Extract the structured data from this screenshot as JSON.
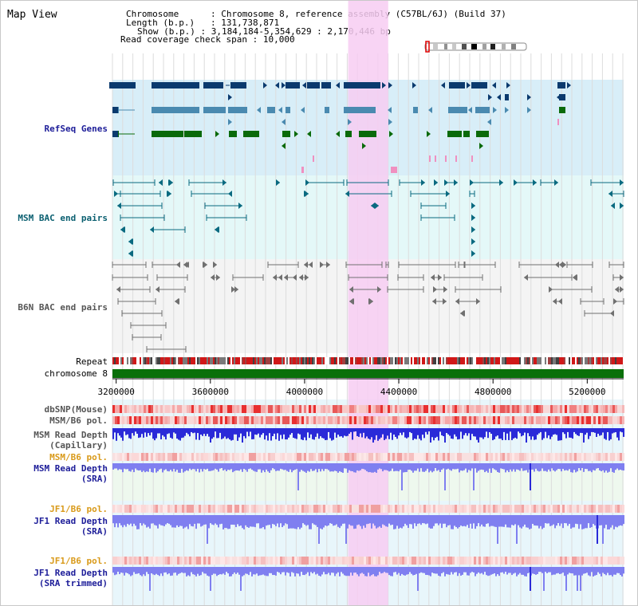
{
  "page_title": "Map View",
  "header": {
    "lines": [
      {
        "key": "Chromosome",
        "value": "Chromosome 8, reference assembly (C57BL/6J) (Build 37)"
      },
      {
        "key": "Length (b.p.)",
        "value": "131,738,871"
      },
      {
        "key": "Show (b.p.)",
        "value": "3,184,184-5,354,629 : 2,170,446 bp"
      },
      {
        "key": "Read coverage check span",
        "value": "10,000"
      }
    ]
  },
  "tracks": {
    "refseq": "RefSeq Genes",
    "msm_bac": "MSM BAC end pairs",
    "b6n_bac": "B6N BAC end pairs",
    "repeat": "Repeat",
    "chromosome": "chromosome 8",
    "dbsnp": "dbSNP(Mouse)",
    "msm_b6_pol_1": "MSM/B6 pol.",
    "msm_depth_cap_1": "MSM Read Depth",
    "msm_depth_cap_2": "(Capillary)",
    "msm_b6_pol_2": "MSM/B6 pol.",
    "msm_depth_sra_1": "MSM Read Depth",
    "msm_depth_sra_2": "(SRA)",
    "jf1_b6_pol_1": "JF1/B6 pol.",
    "jf1_depth_sra_1": "JF1 Read Depth",
    "jf1_depth_sra_2": "(SRA)",
    "jf1_b6_pol_2": "JF1/B6 pol.",
    "jf1_depth_trim_1": "JF1 Read Depth",
    "jf1_depth_trim_2": "(SRA trimmed)"
  },
  "axis": {
    "ticks": [
      "3200000",
      "3600000",
      "4000000",
      "4400000",
      "4800000",
      "5200000"
    ],
    "tick_values": [
      3200000,
      3600000,
      4000000,
      4400000,
      4800000,
      5200000
    ],
    "range": [
      3184184,
      5354629
    ]
  },
  "highlight": {
    "start": 4185000,
    "end": 4355000
  },
  "colors": {
    "highlight": "#f7cdf2",
    "refseq_bg": "#d8eef8",
    "msm_bac_bg": "#e4f8f8",
    "b6n_bac_bg": "#f4f4f4",
    "chromosome_bar": "#0a700a",
    "gene_navy": "#0b3a6e",
    "gene_steel": "#4a8ab0",
    "gene_green": "#0a6a0a",
    "bac_teal": "#0a6a80",
    "bac_grey": "#707070",
    "depth_blue": "#2a2ad8",
    "depth_light": "#7f7ff0",
    "pol_red": "#e83030"
  }
}
